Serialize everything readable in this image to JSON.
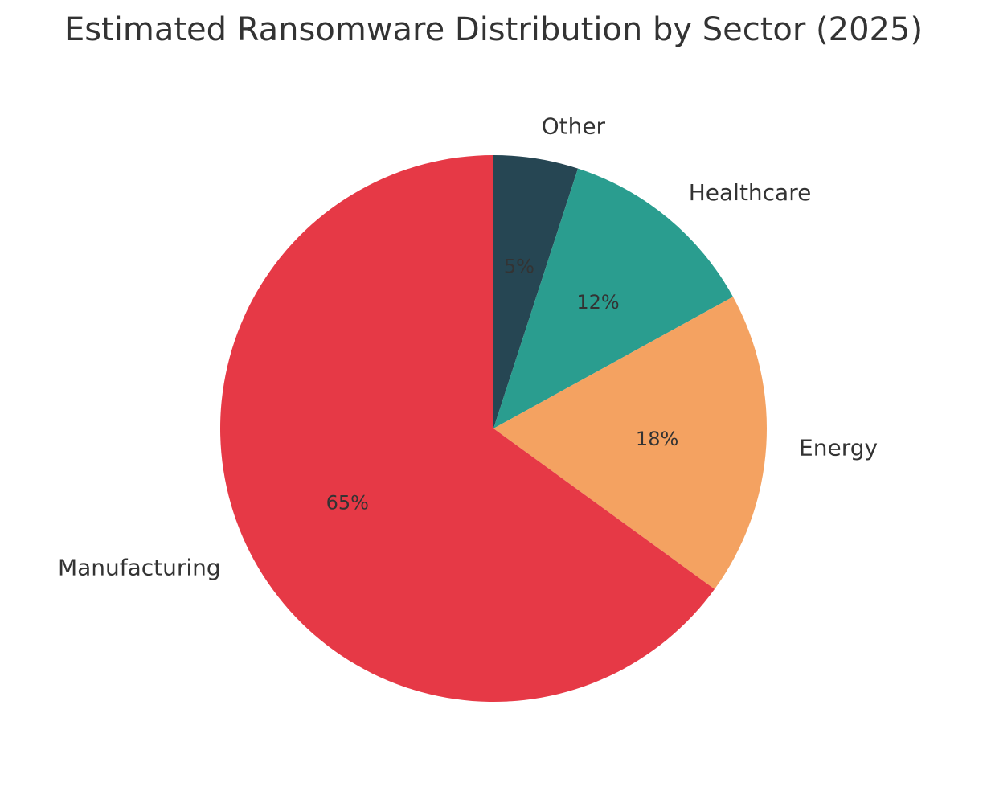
{
  "chart_data": {
    "type": "pie",
    "title": "Estimated Ransomware Distribution by Sector (2025)",
    "categories": [
      "Other",
      "Healthcare",
      "Energy",
      "Manufacturing"
    ],
    "values": [
      5,
      12,
      18,
      65
    ],
    "value_labels": [
      "5%",
      "12%",
      "18%",
      "65%"
    ],
    "colors": [
      "#264653",
      "#2a9d8f",
      "#f4a261",
      "#e63946"
    ],
    "start_angle_deg": 90,
    "direction": "clockwise"
  }
}
